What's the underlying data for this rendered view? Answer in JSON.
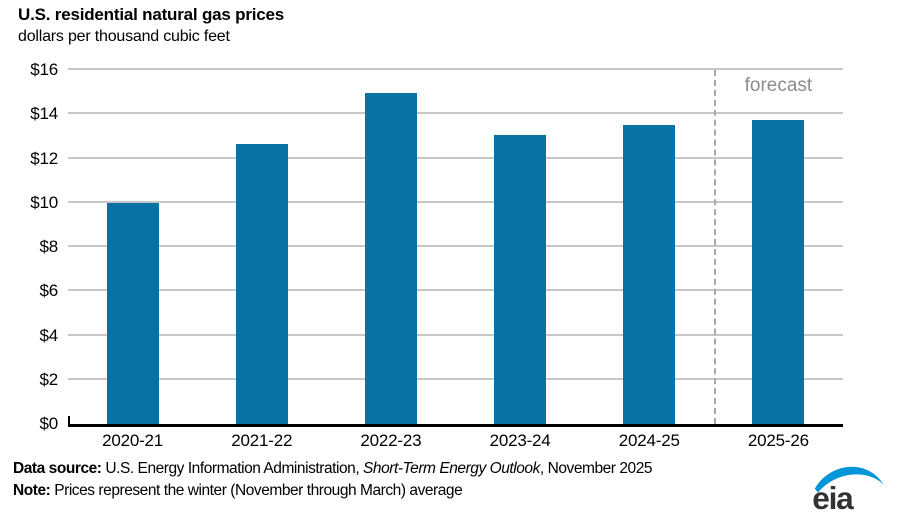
{
  "title": "U.S. residential natural gas prices",
  "subtitle": "dollars per thousand cubic feet",
  "forecast_label": "forecast",
  "chart_data": {
    "type": "bar",
    "title": "U.S. residential natural gas prices",
    "ylabel": "dollars per thousand cubic feet",
    "categories": [
      "2020-21",
      "2021-22",
      "2022-23",
      "2023-24",
      "2024-25",
      "2025-26"
    ],
    "values": [
      10.0,
      12.65,
      14.95,
      13.05,
      13.5,
      13.75
    ],
    "ylim": [
      0,
      16
    ],
    "ytick_step": 2,
    "ytick_prefix": "$",
    "grid": true,
    "legend": "none",
    "forecast_start_index": 5,
    "forecast_annotation": "forecast"
  },
  "colors": {
    "bar": "#0773a5",
    "gridline": "#c7c7c7",
    "axis": "#000000",
    "forecast_text": "#8c8c8c",
    "forecast_divider": "#a8a8a8",
    "logo_swoosh": "#0096d7",
    "logo_text": "#333333"
  },
  "footer": {
    "source_label": "Data source:",
    "source_pre": " U.S. Energy Information Administration, ",
    "source_italic": "Short-Term Energy Outlook",
    "source_post": ", November 2025",
    "note_label": "Note:",
    "note_text": " Prices represent the winter (November through March) average"
  },
  "logo": {
    "text": "eia"
  }
}
